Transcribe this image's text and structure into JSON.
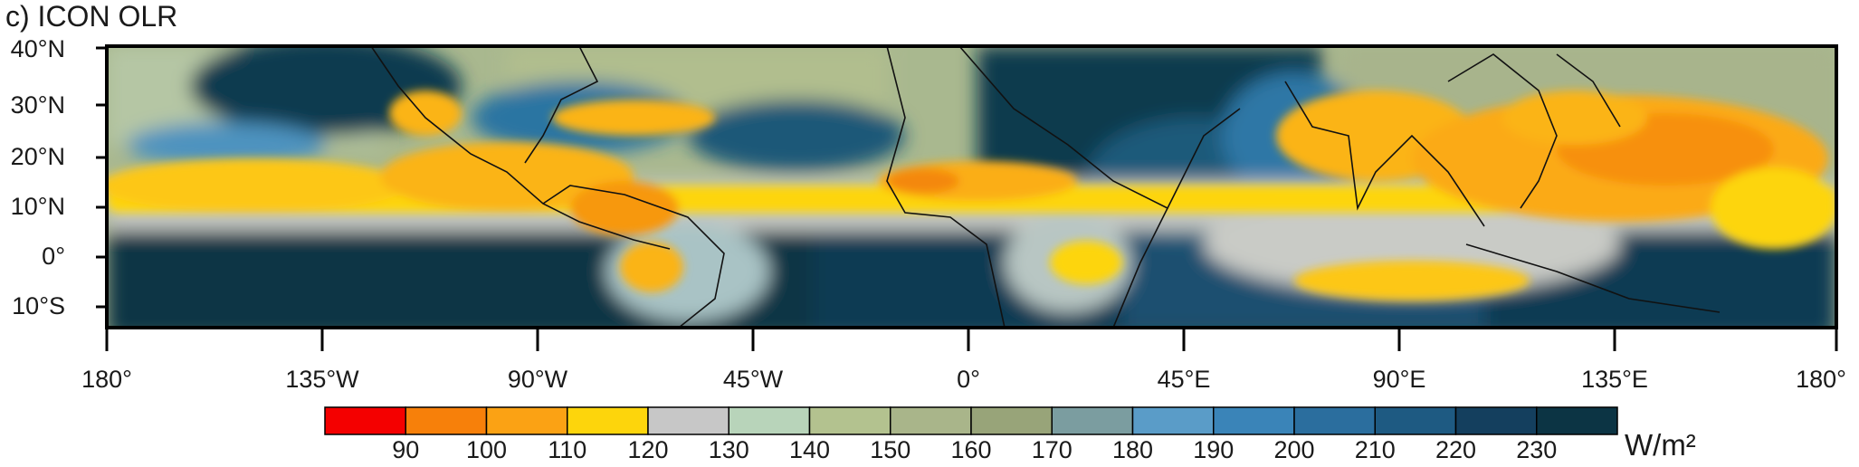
{
  "title": "c) ICON OLR",
  "lat_labels": [
    "40°N",
    "30°N",
    "20°N",
    "10°N",
    "0°",
    "10°S"
  ],
  "lon_labels": [
    "180°",
    "135°W",
    "90°W",
    "45°W",
    "0°",
    "45°E",
    "90°E",
    "135°E",
    "180°"
  ],
  "colorbar": {
    "colors": [
      "#f40000",
      "#f7800a",
      "#fba214",
      "#fdd50c",
      "#c7c7c7",
      "#b8d4ba",
      "#b3c28f",
      "#a9b58a",
      "#98a479",
      "#7b9da0",
      "#5a9cc8",
      "#3a84b8",
      "#2b6e9e",
      "#1e5a82",
      "#143f5e",
      "#0c3444"
    ],
    "tick_labels": [
      "90",
      "100",
      "110",
      "120",
      "130",
      "140",
      "150",
      "160",
      "170",
      "180",
      "190",
      "200",
      "210",
      "220",
      "230"
    ],
    "units": "W/m²"
  }
}
